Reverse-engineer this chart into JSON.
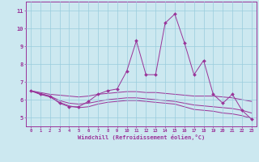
{
  "background_color": "#cce8f0",
  "grid_color": "#99ccdd",
  "line_color": "#993399",
  "marker_color": "#993399",
  "xlabel": "Windchill (Refroidissement éolien,°C)",
  "xlabel_color": "#993399",
  "tick_color": "#993399",
  "ylim": [
    4.5,
    11.5
  ],
  "xlim": [
    -0.5,
    23.5
  ],
  "yticks": [
    5,
    6,
    7,
    8,
    9,
    10,
    11
  ],
  "xticks": [
    0,
    1,
    2,
    3,
    4,
    5,
    6,
    7,
    8,
    9,
    10,
    11,
    12,
    13,
    14,
    15,
    16,
    17,
    18,
    19,
    20,
    21,
    22,
    23
  ],
  "series_main": [
    6.5,
    6.3,
    6.2,
    5.8,
    5.6,
    5.6,
    5.9,
    6.3,
    6.5,
    6.6,
    7.6,
    9.3,
    7.4,
    7.4,
    10.3,
    10.8,
    9.2,
    7.4,
    8.2,
    6.3,
    5.8,
    6.3,
    5.4,
    4.9
  ],
  "series_line1": [
    6.5,
    6.4,
    6.3,
    6.25,
    6.2,
    6.15,
    6.2,
    6.3,
    6.35,
    6.4,
    6.45,
    6.45,
    6.4,
    6.4,
    6.35,
    6.3,
    6.25,
    6.2,
    6.2,
    6.2,
    6.15,
    6.1,
    6.0,
    5.9
  ],
  "series_line2": [
    6.5,
    6.35,
    6.2,
    5.95,
    5.8,
    5.75,
    5.8,
    5.9,
    6.0,
    6.05,
    6.1,
    6.1,
    6.05,
    6.0,
    5.95,
    5.9,
    5.8,
    5.7,
    5.65,
    5.6,
    5.55,
    5.5,
    5.4,
    5.25
  ],
  "series_line3": [
    6.5,
    6.3,
    6.15,
    5.85,
    5.65,
    5.55,
    5.6,
    5.75,
    5.85,
    5.9,
    5.95,
    5.95,
    5.9,
    5.85,
    5.8,
    5.75,
    5.6,
    5.45,
    5.4,
    5.35,
    5.25,
    5.2,
    5.1,
    4.95
  ]
}
